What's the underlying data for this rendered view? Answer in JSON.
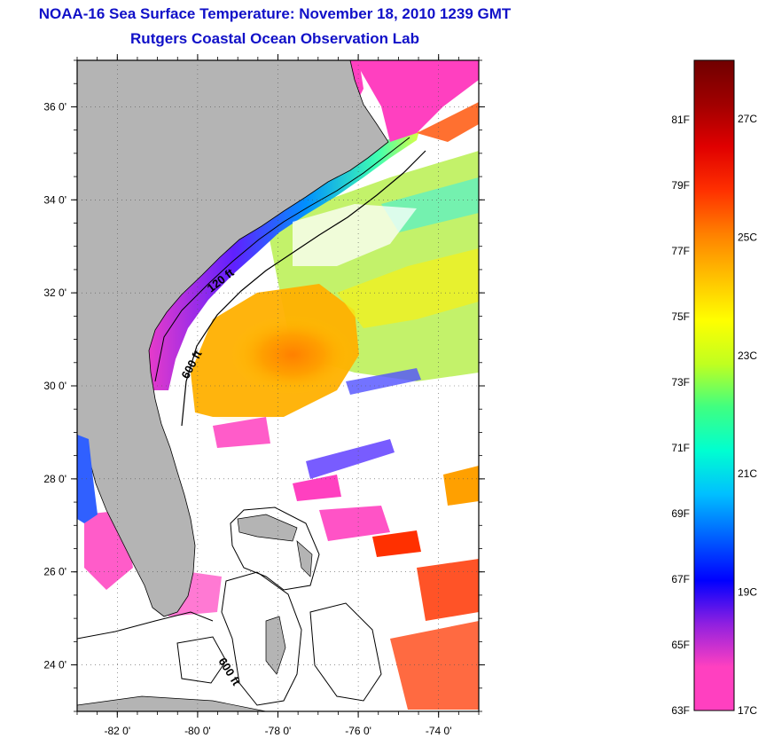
{
  "title": {
    "line1": "NOAA-16 Sea Surface Temperature:  November 18, 2010 1239 GMT",
    "line2": "Rutgers Coastal Ocean Observation Lab"
  },
  "map": {
    "lat_labels": [
      {
        "value": 36,
        "text": "36 0'"
      },
      {
        "value": 34,
        "text": "34 0'"
      },
      {
        "value": 32,
        "text": "32 0'"
      },
      {
        "value": 30,
        "text": "30 0'"
      },
      {
        "value": 28,
        "text": "28 0'"
      },
      {
        "value": 26,
        "text": "26 0'"
      },
      {
        "value": 24,
        "text": "24 0'"
      }
    ],
    "lon_labels": [
      {
        "value": -82,
        "text": "-82 0'"
      },
      {
        "value": -80,
        "text": "-80 0'"
      },
      {
        "value": -78,
        "text": "-78 0'"
      },
      {
        "value": -76,
        "text": "-76 0'"
      },
      {
        "value": -74,
        "text": "-74 0'"
      }
    ],
    "lat_range": [
      23.0,
      37.0
    ],
    "lon_range": [
      -83.0,
      -73.0
    ],
    "contour_labels": {
      "c120": "120 ft",
      "c600a": "600 ft",
      "c600b": "600 ft"
    },
    "colors": {
      "land": "#b4b4b4",
      "cloud": "#ffffff",
      "contour": "#000000"
    }
  },
  "colorbar": {
    "fahrenheit": [
      "81F",
      "79F",
      "77F",
      "75F",
      "73F",
      "71F",
      "69F",
      "67F",
      "65F",
      "63F"
    ],
    "celsius": [
      "27C",
      "25C",
      "23C",
      "21C",
      "19C",
      "17C"
    ],
    "gradient": [
      "#ff40c0",
      "#ff40c0",
      "#9020e0",
      "#0000ff",
      "#0060ff",
      "#00c0ff",
      "#00ffd0",
      "#40ff80",
      "#c0ff20",
      "#ffff00",
      "#ffc000",
      "#ff8000",
      "#ff3000",
      "#e00000",
      "#a00000",
      "#700000"
    ]
  }
}
